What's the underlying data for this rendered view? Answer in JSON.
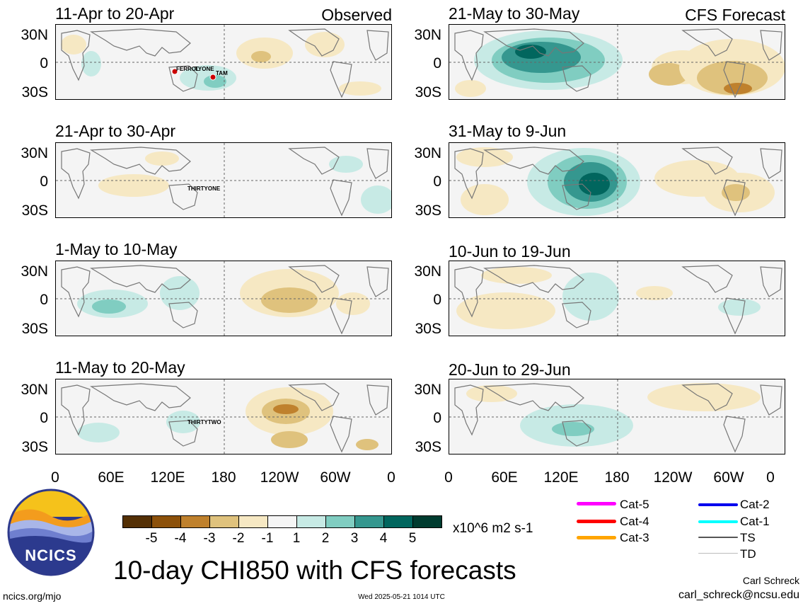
{
  "header": {
    "observed_label": "Observed",
    "forecast_label": "CFS Forecast"
  },
  "panels": [
    {
      "title": "11-Apr to 20-Apr",
      "storms": [
        "FERROL",
        "TYONE",
        "TAM"
      ]
    },
    {
      "title": "21-Apr to 30-Apr",
      "storms": [
        "THIRTYONE"
      ]
    },
    {
      "title": "1-May to 10-May",
      "storms": []
    },
    {
      "title": "11-May to 20-May",
      "storms": [
        "THIRTYTWO"
      ]
    },
    {
      "title": "21-May to 30-May",
      "storms": []
    },
    {
      "title": "31-May to 9-Jun",
      "storms": []
    },
    {
      "title": "10-Jun to 19-Jun",
      "storms": []
    },
    {
      "title": "20-Jun to 29-Jun",
      "storms": []
    }
  ],
  "axes": {
    "y_ticks": [
      "30N",
      "0",
      "30S"
    ],
    "x_ticks": [
      "0",
      "60E",
      "120E",
      "180",
      "120W",
      "60W",
      "0"
    ]
  },
  "colorbar": {
    "labels": [
      "-5",
      "-4",
      "-3",
      "-2",
      "-1",
      "1",
      "2",
      "3",
      "4",
      "5"
    ],
    "colors": [
      "#543005",
      "#8c510a",
      "#bf812d",
      "#dfc27d",
      "#f6e8c3",
      "#f5f5f5",
      "#c7eae5",
      "#80cdc1",
      "#35978f",
      "#01665e",
      "#003c30"
    ],
    "units": "x10^6 m2 s-1"
  },
  "legend": [
    {
      "label": "Cat-5",
      "color": "#ff00ff"
    },
    {
      "label": "Cat-4",
      "color": "#ff0000"
    },
    {
      "label": "Cat-3",
      "color": "#ffa500"
    },
    {
      "label": "Cat-2",
      "color": "#0000ee"
    },
    {
      "label": "Cat-1",
      "color": "#00ffff"
    },
    {
      "label": "TS",
      "color": "#555555"
    },
    {
      "label": "TD",
      "color": "#bbbbbb"
    }
  ],
  "footer": {
    "main_title": "10-day CHI850 with CFS forecasts",
    "logo_text": "NCICS",
    "url": "ncics.org/mjo",
    "timestamp": "Wed 2025-05-21 1014 UTC",
    "author": "Carl Schreck",
    "email": "carl_schreck@ncsu.edu"
  }
}
